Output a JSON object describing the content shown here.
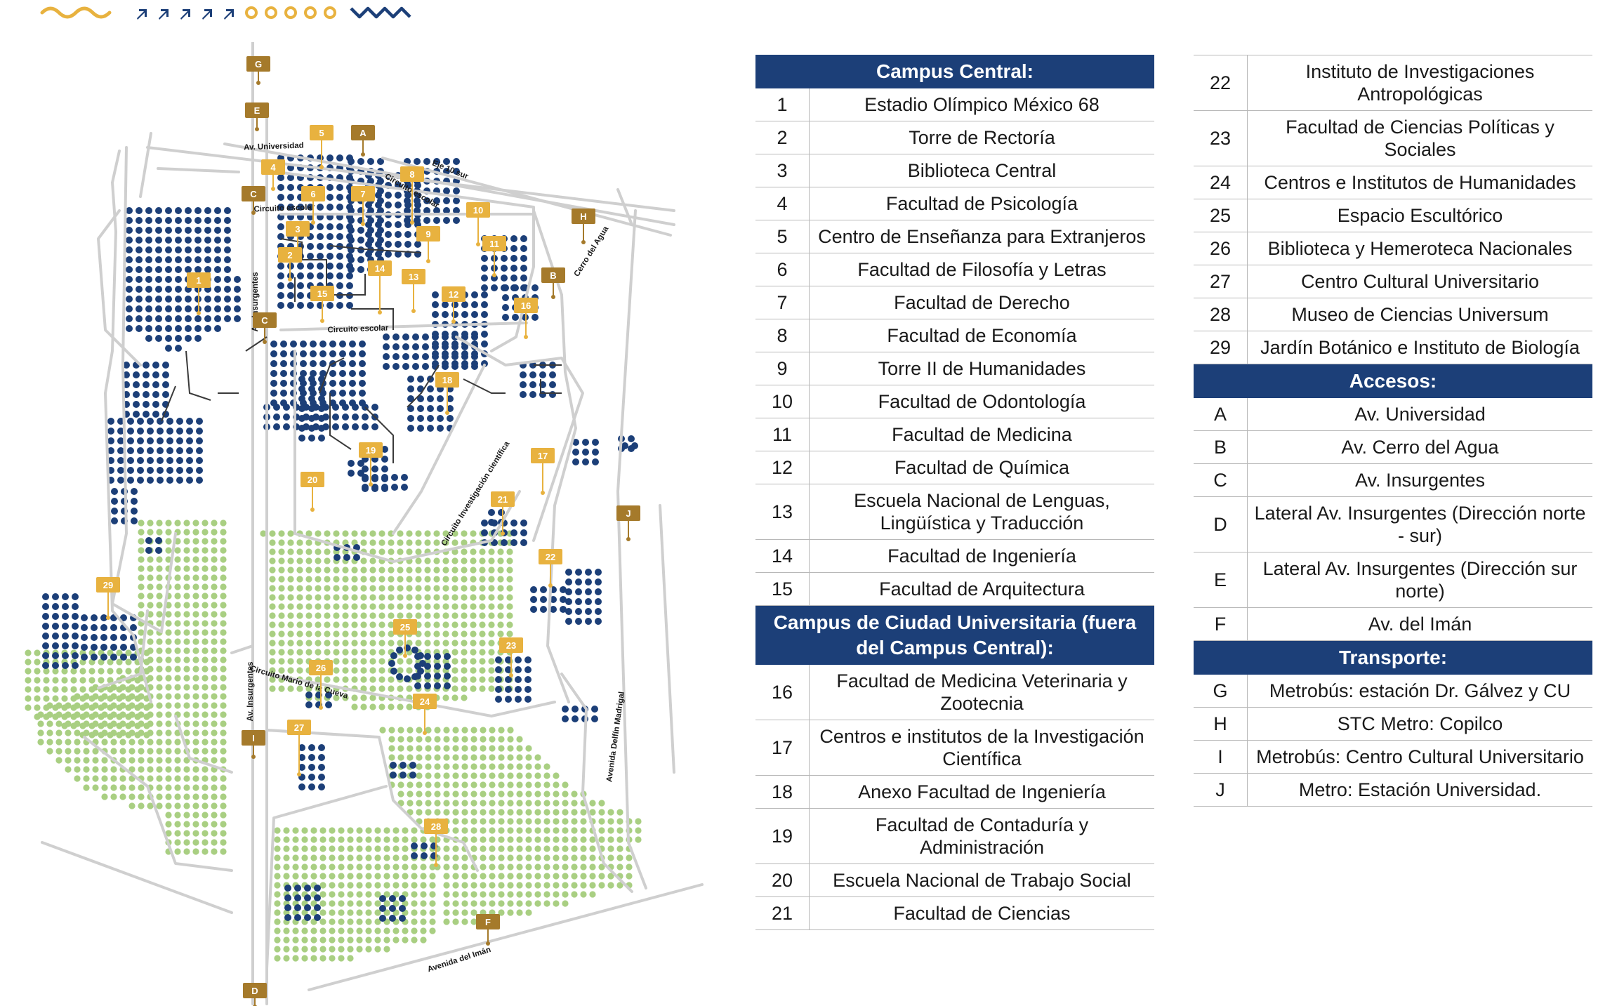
{
  "colors": {
    "navy": "#1c3f78",
    "green": "#a9cf82",
    "gold": "#e8b23f",
    "bronze": "#a57a2b",
    "road": "#cfcfcf"
  },
  "map": {
    "street_labels": [
      "Av. Universidad",
      "Eje 10 sur",
      "Circuito escolar",
      "Circuito escolar",
      "Circuito escolar",
      "Cerro del Agua",
      "Av. Insurgentes",
      "Circuito Investigación científica",
      "Av. Insurgentes",
      "Circuito Mario de la Cueva",
      "Avenida Delfín Madrigal",
      "Avenida del Imán"
    ],
    "access_markers": [
      "G",
      "E",
      "A",
      "C",
      "H",
      "B",
      "C",
      "J",
      "I",
      "F",
      "D"
    ],
    "site_markers": [
      "1",
      "2",
      "3",
      "4",
      "5",
      "6",
      "7",
      "8",
      "9",
      "10",
      "11",
      "12",
      "13",
      "14",
      "15",
      "16",
      "17",
      "18",
      "19",
      "20",
      "21",
      "22",
      "23",
      "24",
      "25",
      "26",
      "27",
      "28",
      "29"
    ]
  },
  "legend": {
    "col1": [
      {
        "title": "Campus Central:",
        "rows": [
          {
            "n": "1",
            "t": "Estadio Olímpico México 68"
          },
          {
            "n": "2",
            "t": "Torre de Rectoría"
          },
          {
            "n": "3",
            "t": "Biblioteca Central"
          },
          {
            "n": "4",
            "t": "Facultad de Psicología"
          },
          {
            "n": "5",
            "t": "Centro de Enseñanza para Extranjeros"
          },
          {
            "n": "6",
            "t": "Facultad de Filosofía y Letras"
          },
          {
            "n": "7",
            "t": "Facultad de Derecho"
          },
          {
            "n": "8",
            "t": "Facultad de Economía"
          },
          {
            "n": "9",
            "t": "Torre II de Humanidades"
          },
          {
            "n": "10",
            "t": "Facultad de Odontología"
          },
          {
            "n": "11",
            "t": "Facultad de Medicina"
          },
          {
            "n": "12",
            "t": "Facultad de Química"
          },
          {
            "n": "13",
            "t": "Escuela Nacional de Lenguas, Lingüística y Traducción"
          },
          {
            "n": "14",
            "t": "Facultad de Ingeniería"
          },
          {
            "n": "15",
            "t": "Facultad de Arquitectura"
          }
        ]
      },
      {
        "title": "Campus de Ciudad Universitaria (fuera del Campus Central):",
        "rows": [
          {
            "n": "16",
            "t": "Facultad de Medicina Veterinaria y Zootecnia"
          },
          {
            "n": "17",
            "t": "Centros e institutos de la Investigación Científica"
          },
          {
            "n": "18",
            "t": "Anexo Facultad de Ingeniería"
          },
          {
            "n": "19",
            "t": "Facultad de Contaduría y Administración"
          },
          {
            "n": "20",
            "t": "Escuela Nacional de Trabajo Social"
          },
          {
            "n": "21",
            "t": "Facultad de Ciencias"
          }
        ]
      }
    ],
    "col2": [
      {
        "title": "",
        "rows": [
          {
            "n": "22",
            "t": "Instituto de Investigaciones Antropológicas"
          },
          {
            "n": "23",
            "t": "Facultad de Ciencias Políticas y Sociales"
          },
          {
            "n": "24",
            "t": "Centros e Institutos de Humanidades"
          },
          {
            "n": "25",
            "t": "Espacio Escultórico"
          },
          {
            "n": "26",
            "t": "Biblioteca y Hemeroteca Nacionales"
          },
          {
            "n": "27",
            "t": "Centro Cultural Universitario"
          },
          {
            "n": "28",
            "t": "Museo de Ciencias Universum"
          },
          {
            "n": "29",
            "t": "Jardín Botánico e Instituto de Biología"
          }
        ]
      },
      {
        "title": "Accesos:",
        "rows": [
          {
            "n": "A",
            "t": "Av. Universidad"
          },
          {
            "n": "B",
            "t": "Av. Cerro del Agua"
          },
          {
            "n": "C",
            "t": "Av. Insurgentes"
          },
          {
            "n": "D",
            "t": "Lateral Av. Insurgentes (Dirección norte - sur)"
          },
          {
            "n": "E",
            "t": "Lateral Av. Insurgentes (Dirección sur norte)"
          },
          {
            "n": "F",
            "t": "Av. del Imán"
          }
        ]
      },
      {
        "title": "Transporte:",
        "rows": [
          {
            "n": "G",
            "t": "Metrobús: estación Dr. Gálvez y CU"
          },
          {
            "n": "H",
            "t": "STC Metro: Copilco"
          },
          {
            "n": "I",
            "t": "Metrobús: Centro Cultural Universitario"
          },
          {
            "n": "J",
            "t": "Metro: Estación Universidad."
          }
        ]
      }
    ]
  }
}
